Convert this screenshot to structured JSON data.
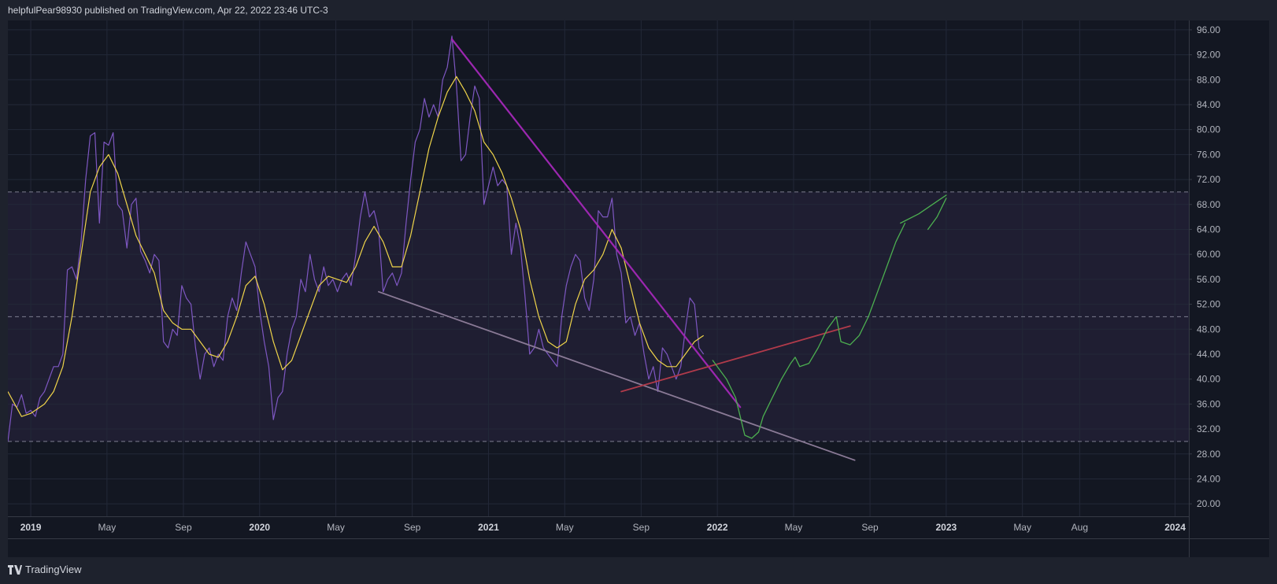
{
  "header": {
    "publisher": "helpfulPear98930 published on TradingView.com, Apr 22, 2022 23:46 UTC-3"
  },
  "footer": {
    "brand": "TradingView"
  },
  "colors": {
    "background": "#131722",
    "band_fill": "#2a2440",
    "grid": "#232838",
    "rsi": "#7e57c2",
    "rsi_ma": "#f0d54a",
    "downtrend": "#9c27b0",
    "support": "#8a7a96",
    "higher_low": "#b03a4a",
    "projection": "#4caf50",
    "band_line": "#7d7d90"
  },
  "chart_data": {
    "type": "line",
    "x_labels": [
      {
        "text": "2019",
        "bold": true,
        "t": 2019.0
      },
      {
        "text": "May",
        "bold": false,
        "t": 2019.333
      },
      {
        "text": "Sep",
        "bold": false,
        "t": 2019.667
      },
      {
        "text": "2020",
        "bold": true,
        "t": 2020.0
      },
      {
        "text": "May",
        "bold": false,
        "t": 2020.333
      },
      {
        "text": "Sep",
        "bold": false,
        "t": 2020.667
      },
      {
        "text": "2021",
        "bold": true,
        "t": 2021.0
      },
      {
        "text": "May",
        "bold": false,
        "t": 2021.333
      },
      {
        "text": "Sep",
        "bold": false,
        "t": 2021.667
      },
      {
        "text": "2022",
        "bold": true,
        "t": 2022.0
      },
      {
        "text": "May",
        "bold": false,
        "t": 2022.333
      },
      {
        "text": "Sep",
        "bold": false,
        "t": 2022.667
      },
      {
        "text": "2023",
        "bold": true,
        "t": 2023.0
      },
      {
        "text": "May",
        "bold": false,
        "t": 2023.333
      },
      {
        "text": "Aug",
        "bold": false,
        "t": 2023.583
      },
      {
        "text": "2024",
        "bold": true,
        "t": 2024.0
      }
    ],
    "x_range": [
      2018.9,
      2024.06
    ],
    "y_ticks": [
      "96.00",
      "92.00",
      "88.00",
      "84.00",
      "80.00",
      "76.00",
      "72.00",
      "68.00",
      "64.00",
      "60.00",
      "56.00",
      "52.00",
      "48.00",
      "44.00",
      "40.00",
      "36.00",
      "32.00",
      "28.00",
      "24.00",
      "20.00"
    ],
    "y_range": [
      18,
      97.5
    ],
    "bands": {
      "upper": 70,
      "middle": 50,
      "lower": 30
    },
    "series": [
      {
        "key": "rsi",
        "points": [
          [
            2018.9,
            30
          ],
          [
            2018.92,
            36
          ],
          [
            2018.94,
            35.5
          ],
          [
            2018.96,
            37.5
          ],
          [
            2018.98,
            34.5
          ],
          [
            2019.0,
            35
          ],
          [
            2019.02,
            34
          ],
          [
            2019.04,
            37
          ],
          [
            2019.06,
            38
          ],
          [
            2019.08,
            40
          ],
          [
            2019.1,
            42
          ],
          [
            2019.12,
            42
          ],
          [
            2019.14,
            44
          ],
          [
            2019.16,
            57.5
          ],
          [
            2019.18,
            58
          ],
          [
            2019.2,
            56
          ],
          [
            2019.22,
            62
          ],
          [
            2019.24,
            72
          ],
          [
            2019.26,
            79
          ],
          [
            2019.28,
            79.5
          ],
          [
            2019.3,
            65
          ],
          [
            2019.32,
            78
          ],
          [
            2019.34,
            77.5
          ],
          [
            2019.36,
            79.5
          ],
          [
            2019.38,
            68
          ],
          [
            2019.4,
            67
          ],
          [
            2019.42,
            61
          ],
          [
            2019.44,
            68
          ],
          [
            2019.46,
            69
          ],
          [
            2019.48,
            60.5
          ],
          [
            2019.5,
            59
          ],
          [
            2019.52,
            57
          ],
          [
            2019.54,
            60
          ],
          [
            2019.56,
            59
          ],
          [
            2019.58,
            46
          ],
          [
            2019.6,
            45
          ],
          [
            2019.62,
            48
          ],
          [
            2019.64,
            47
          ],
          [
            2019.66,
            55
          ],
          [
            2019.68,
            53
          ],
          [
            2019.7,
            52
          ],
          [
            2019.72,
            45
          ],
          [
            2019.74,
            40
          ],
          [
            2019.76,
            44
          ],
          [
            2019.78,
            45
          ],
          [
            2019.8,
            42
          ],
          [
            2019.82,
            44
          ],
          [
            2019.84,
            43
          ],
          [
            2019.86,
            50
          ],
          [
            2019.88,
            53
          ],
          [
            2019.9,
            51
          ],
          [
            2019.92,
            57
          ],
          [
            2019.94,
            62
          ],
          [
            2019.96,
            60
          ],
          [
            2019.98,
            58
          ],
          [
            2020.0,
            51
          ],
          [
            2020.02,
            46
          ],
          [
            2020.04,
            42
          ],
          [
            2020.06,
            33.5
          ],
          [
            2020.08,
            37
          ],
          [
            2020.1,
            38
          ],
          [
            2020.12,
            44
          ],
          [
            2020.14,
            48
          ],
          [
            2020.16,
            50
          ],
          [
            2020.18,
            56
          ],
          [
            2020.2,
            54
          ],
          [
            2020.22,
            60
          ],
          [
            2020.24,
            56
          ],
          [
            2020.26,
            54
          ],
          [
            2020.28,
            58
          ],
          [
            2020.3,
            55
          ],
          [
            2020.32,
            56
          ],
          [
            2020.34,
            54
          ],
          [
            2020.36,
            56
          ],
          [
            2020.38,
            57
          ],
          [
            2020.4,
            55
          ],
          [
            2020.42,
            60
          ],
          [
            2020.44,
            66
          ],
          [
            2020.46,
            70
          ],
          [
            2020.48,
            66
          ],
          [
            2020.5,
            67
          ],
          [
            2020.52,
            64
          ],
          [
            2020.54,
            54
          ],
          [
            2020.56,
            56
          ],
          [
            2020.58,
            57
          ],
          [
            2020.6,
            55
          ],
          [
            2020.62,
            57
          ],
          [
            2020.64,
            65
          ],
          [
            2020.66,
            72
          ],
          [
            2020.68,
            78
          ],
          [
            2020.7,
            80
          ],
          [
            2020.72,
            85
          ],
          [
            2020.74,
            82
          ],
          [
            2020.76,
            84
          ],
          [
            2020.78,
            82
          ],
          [
            2020.8,
            88
          ],
          [
            2020.82,
            90
          ],
          [
            2020.84,
            95
          ],
          [
            2020.86,
            87
          ],
          [
            2020.88,
            75
          ],
          [
            2020.9,
            76
          ],
          [
            2020.92,
            82
          ],
          [
            2020.94,
            87
          ],
          [
            2020.96,
            85
          ],
          [
            2020.98,
            68
          ],
          [
            2021.0,
            71
          ],
          [
            2021.02,
            74
          ],
          [
            2021.04,
            71
          ],
          [
            2021.06,
            72
          ],
          [
            2021.08,
            71
          ],
          [
            2021.1,
            60
          ],
          [
            2021.12,
            65
          ],
          [
            2021.14,
            61
          ],
          [
            2021.16,
            53
          ],
          [
            2021.18,
            44
          ],
          [
            2021.2,
            45
          ],
          [
            2021.22,
            48
          ],
          [
            2021.24,
            45
          ],
          [
            2021.26,
            44
          ],
          [
            2021.28,
            43
          ],
          [
            2021.3,
            42
          ],
          [
            2021.32,
            50
          ],
          [
            2021.34,
            55
          ],
          [
            2021.36,
            58
          ],
          [
            2021.38,
            60
          ],
          [
            2021.4,
            59
          ],
          [
            2021.42,
            53
          ],
          [
            2021.44,
            51
          ],
          [
            2021.46,
            56
          ],
          [
            2021.48,
            67
          ],
          [
            2021.5,
            66
          ],
          [
            2021.52,
            66
          ],
          [
            2021.54,
            69
          ],
          [
            2021.56,
            60
          ],
          [
            2021.58,
            57
          ],
          [
            2021.6,
            49
          ],
          [
            2021.62,
            50
          ],
          [
            2021.64,
            47
          ],
          [
            2021.66,
            49
          ],
          [
            2021.68,
            44
          ],
          [
            2021.7,
            40
          ],
          [
            2021.72,
            42
          ],
          [
            2021.74,
            38
          ],
          [
            2021.76,
            45
          ],
          [
            2021.78,
            44
          ],
          [
            2021.8,
            42
          ],
          [
            2021.82,
            40
          ],
          [
            2021.84,
            42
          ],
          [
            2021.86,
            48
          ],
          [
            2021.88,
            53
          ],
          [
            2021.9,
            52
          ],
          [
            2021.92,
            45
          ],
          [
            2021.94,
            44
          ]
        ]
      },
      {
        "key": "rsi_ma",
        "points": [
          [
            2018.9,
            38
          ],
          [
            2018.96,
            34
          ],
          [
            2019.0,
            34.5
          ],
          [
            2019.06,
            36
          ],
          [
            2019.1,
            38
          ],
          [
            2019.14,
            42
          ],
          [
            2019.18,
            50
          ],
          [
            2019.22,
            60
          ],
          [
            2019.26,
            70
          ],
          [
            2019.3,
            74
          ],
          [
            2019.34,
            76
          ],
          [
            2019.38,
            73
          ],
          [
            2019.42,
            68
          ],
          [
            2019.46,
            63
          ],
          [
            2019.5,
            60
          ],
          [
            2019.54,
            57
          ],
          [
            2019.58,
            51
          ],
          [
            2019.62,
            49
          ],
          [
            2019.66,
            48
          ],
          [
            2019.7,
            48
          ],
          [
            2019.74,
            46
          ],
          [
            2019.78,
            44
          ],
          [
            2019.82,
            43.5
          ],
          [
            2019.86,
            46
          ],
          [
            2019.9,
            50
          ],
          [
            2019.94,
            55
          ],
          [
            2019.98,
            56.5
          ],
          [
            2020.02,
            52
          ],
          [
            2020.06,
            46
          ],
          [
            2020.1,
            41.5
          ],
          [
            2020.14,
            43
          ],
          [
            2020.18,
            47
          ],
          [
            2020.22,
            51
          ],
          [
            2020.26,
            55
          ],
          [
            2020.3,
            56.5
          ],
          [
            2020.34,
            56
          ],
          [
            2020.38,
            55.5
          ],
          [
            2020.42,
            58
          ],
          [
            2020.46,
            62
          ],
          [
            2020.5,
            64.5
          ],
          [
            2020.54,
            62
          ],
          [
            2020.58,
            58
          ],
          [
            2020.62,
            58
          ],
          [
            2020.66,
            63
          ],
          [
            2020.7,
            70
          ],
          [
            2020.74,
            77
          ],
          [
            2020.78,
            82
          ],
          [
            2020.82,
            86
          ],
          [
            2020.86,
            88.5
          ],
          [
            2020.9,
            86
          ],
          [
            2020.94,
            83
          ],
          [
            2020.98,
            78
          ],
          [
            2021.02,
            76
          ],
          [
            2021.06,
            73
          ],
          [
            2021.1,
            69
          ],
          [
            2021.14,
            64
          ],
          [
            2021.18,
            56
          ],
          [
            2021.22,
            50
          ],
          [
            2021.26,
            46
          ],
          [
            2021.3,
            45
          ],
          [
            2021.34,
            46
          ],
          [
            2021.38,
            52
          ],
          [
            2021.42,
            56
          ],
          [
            2021.46,
            57.5
          ],
          [
            2021.5,
            60
          ],
          [
            2021.54,
            64
          ],
          [
            2021.58,
            61
          ],
          [
            2021.62,
            55
          ],
          [
            2021.66,
            49
          ],
          [
            2021.7,
            45
          ],
          [
            2021.74,
            43
          ],
          [
            2021.78,
            42
          ],
          [
            2021.82,
            42
          ],
          [
            2021.86,
            44
          ],
          [
            2021.9,
            46
          ],
          [
            2021.94,
            47
          ]
        ]
      }
    ],
    "drawings": [
      {
        "key": "downtrend",
        "points": [
          [
            2020.84,
            94.5
          ],
          [
            2022.1,
            35.5
          ]
        ]
      },
      {
        "key": "support",
        "points": [
          [
            2020.52,
            54
          ],
          [
            2022.6,
            27
          ]
        ]
      },
      {
        "key": "higher_low",
        "points": [
          [
            2021.58,
            38
          ],
          [
            2022.58,
            48.5
          ]
        ]
      },
      {
        "key": "projection",
        "points": [
          [
            2021.98,
            43
          ],
          [
            2022.04,
            40
          ],
          [
            2022.08,
            37
          ],
          [
            2022.1,
            34
          ],
          [
            2022.12,
            31
          ],
          [
            2022.15,
            30.5
          ],
          [
            2022.18,
            31.5
          ],
          [
            2022.2,
            34
          ],
          [
            2022.24,
            37
          ],
          [
            2022.28,
            40
          ],
          [
            2022.32,
            42.5
          ],
          [
            2022.34,
            43.5
          ],
          [
            2022.36,
            42
          ],
          [
            2022.4,
            42.5
          ],
          [
            2022.44,
            45
          ],
          [
            2022.48,
            48
          ],
          [
            2022.52,
            50
          ],
          [
            2022.54,
            46
          ],
          [
            2022.58,
            45.5
          ],
          [
            2022.62,
            47
          ],
          [
            2022.66,
            50
          ],
          [
            2022.7,
            54
          ],
          [
            2022.74,
            58
          ],
          [
            2022.78,
            62
          ],
          [
            2022.82,
            65
          ]
        ]
      },
      {
        "key": "projection",
        "points": [
          [
            2022.8,
            65
          ],
          [
            2022.88,
            66.5
          ],
          [
            2022.96,
            68.5
          ],
          [
            2023.0,
            69.5
          ]
        ]
      },
      {
        "key": "projection",
        "points": [
          [
            2022.92,
            64
          ],
          [
            2022.96,
            66
          ],
          [
            2023.0,
            69
          ]
        ]
      }
    ]
  }
}
